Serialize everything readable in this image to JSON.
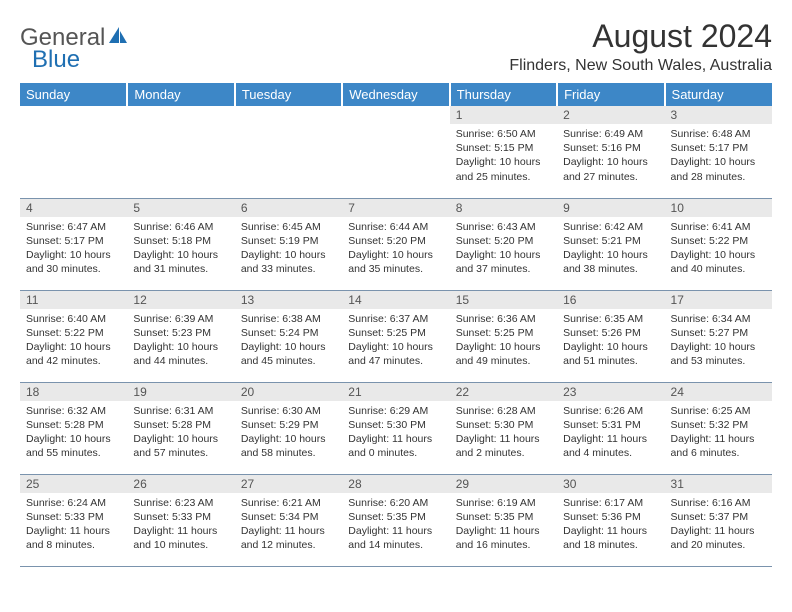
{
  "logo": {
    "text1": "General",
    "text2": "Blue",
    "color1": "#6d6d6d",
    "color2": "#1f6fb2"
  },
  "title": "August 2024",
  "location": "Flinders, New South Wales, Australia",
  "header_bg": "#3d87c7",
  "daynum_bg": "#e9e9e9",
  "rule_color": "#7a93ad",
  "weekdays": [
    "Sunday",
    "Monday",
    "Tuesday",
    "Wednesday",
    "Thursday",
    "Friday",
    "Saturday"
  ],
  "weeks": [
    [
      null,
      null,
      null,
      null,
      {
        "n": "1",
        "sr": "6:50 AM",
        "ss": "5:15 PM",
        "dl": "10 hours and 25 minutes."
      },
      {
        "n": "2",
        "sr": "6:49 AM",
        "ss": "5:16 PM",
        "dl": "10 hours and 27 minutes."
      },
      {
        "n": "3",
        "sr": "6:48 AM",
        "ss": "5:17 PM",
        "dl": "10 hours and 28 minutes."
      }
    ],
    [
      {
        "n": "4",
        "sr": "6:47 AM",
        "ss": "5:17 PM",
        "dl": "10 hours and 30 minutes."
      },
      {
        "n": "5",
        "sr": "6:46 AM",
        "ss": "5:18 PM",
        "dl": "10 hours and 31 minutes."
      },
      {
        "n": "6",
        "sr": "6:45 AM",
        "ss": "5:19 PM",
        "dl": "10 hours and 33 minutes."
      },
      {
        "n": "7",
        "sr": "6:44 AM",
        "ss": "5:20 PM",
        "dl": "10 hours and 35 minutes."
      },
      {
        "n": "8",
        "sr": "6:43 AM",
        "ss": "5:20 PM",
        "dl": "10 hours and 37 minutes."
      },
      {
        "n": "9",
        "sr": "6:42 AM",
        "ss": "5:21 PM",
        "dl": "10 hours and 38 minutes."
      },
      {
        "n": "10",
        "sr": "6:41 AM",
        "ss": "5:22 PM",
        "dl": "10 hours and 40 minutes."
      }
    ],
    [
      {
        "n": "11",
        "sr": "6:40 AM",
        "ss": "5:22 PM",
        "dl": "10 hours and 42 minutes."
      },
      {
        "n": "12",
        "sr": "6:39 AM",
        "ss": "5:23 PM",
        "dl": "10 hours and 44 minutes."
      },
      {
        "n": "13",
        "sr": "6:38 AM",
        "ss": "5:24 PM",
        "dl": "10 hours and 45 minutes."
      },
      {
        "n": "14",
        "sr": "6:37 AM",
        "ss": "5:25 PM",
        "dl": "10 hours and 47 minutes."
      },
      {
        "n": "15",
        "sr": "6:36 AM",
        "ss": "5:25 PM",
        "dl": "10 hours and 49 minutes."
      },
      {
        "n": "16",
        "sr": "6:35 AM",
        "ss": "5:26 PM",
        "dl": "10 hours and 51 minutes."
      },
      {
        "n": "17",
        "sr": "6:34 AM",
        "ss": "5:27 PM",
        "dl": "10 hours and 53 minutes."
      }
    ],
    [
      {
        "n": "18",
        "sr": "6:32 AM",
        "ss": "5:28 PM",
        "dl": "10 hours and 55 minutes."
      },
      {
        "n": "19",
        "sr": "6:31 AM",
        "ss": "5:28 PM",
        "dl": "10 hours and 57 minutes."
      },
      {
        "n": "20",
        "sr": "6:30 AM",
        "ss": "5:29 PM",
        "dl": "10 hours and 58 minutes."
      },
      {
        "n": "21",
        "sr": "6:29 AM",
        "ss": "5:30 PM",
        "dl": "11 hours and 0 minutes."
      },
      {
        "n": "22",
        "sr": "6:28 AM",
        "ss": "5:30 PM",
        "dl": "11 hours and 2 minutes."
      },
      {
        "n": "23",
        "sr": "6:26 AM",
        "ss": "5:31 PM",
        "dl": "11 hours and 4 minutes."
      },
      {
        "n": "24",
        "sr": "6:25 AM",
        "ss": "5:32 PM",
        "dl": "11 hours and 6 minutes."
      }
    ],
    [
      {
        "n": "25",
        "sr": "6:24 AM",
        "ss": "5:33 PM",
        "dl": "11 hours and 8 minutes."
      },
      {
        "n": "26",
        "sr": "6:23 AM",
        "ss": "5:33 PM",
        "dl": "11 hours and 10 minutes."
      },
      {
        "n": "27",
        "sr": "6:21 AM",
        "ss": "5:34 PM",
        "dl": "11 hours and 12 minutes."
      },
      {
        "n": "28",
        "sr": "6:20 AM",
        "ss": "5:35 PM",
        "dl": "11 hours and 14 minutes."
      },
      {
        "n": "29",
        "sr": "6:19 AM",
        "ss": "5:35 PM",
        "dl": "11 hours and 16 minutes."
      },
      {
        "n": "30",
        "sr": "6:17 AM",
        "ss": "5:36 PM",
        "dl": "11 hours and 18 minutes."
      },
      {
        "n": "31",
        "sr": "6:16 AM",
        "ss": "5:37 PM",
        "dl": "11 hours and 20 minutes."
      }
    ]
  ],
  "labels": {
    "sunrise": "Sunrise:",
    "sunset": "Sunset:",
    "daylight": "Daylight:"
  }
}
